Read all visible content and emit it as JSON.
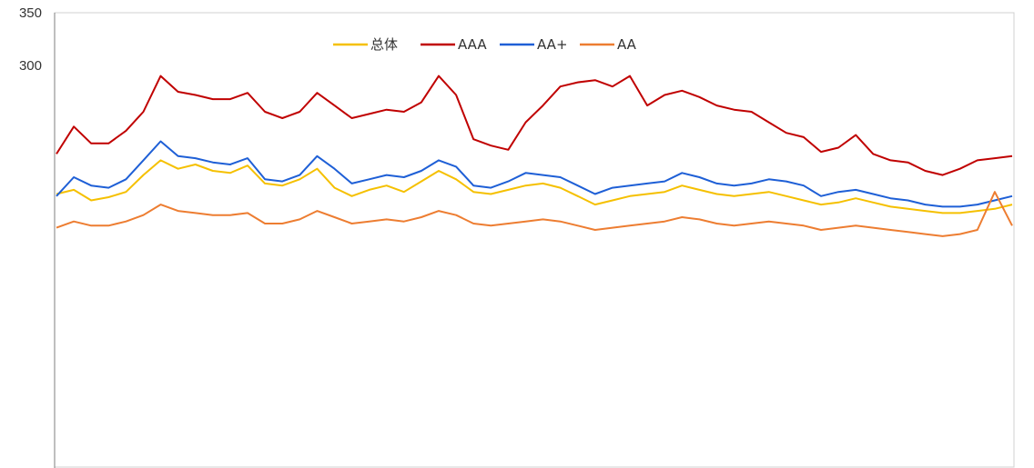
{
  "chart_data": {
    "type": "line",
    "title": "",
    "xlabel": "",
    "ylabel": "",
    "ylim": [
      0,
      350
    ],
    "yticks": [
      300,
      350
    ],
    "grid": false,
    "legend_placement": "top-center",
    "series": [
      {
        "name": "总体",
        "color": "#f5c000",
        "values": [
          178,
          182,
          172,
          175,
          180,
          196,
          210,
          202,
          206,
          200,
          198,
          205,
          188,
          186,
          192,
          202,
          184,
          176,
          182,
          186,
          180,
          190,
          200,
          192,
          180,
          178,
          182,
          186,
          188,
          184,
          176,
          168,
          172,
          176,
          178,
          180,
          186,
          182,
          178,
          176,
          178,
          180,
          176,
          172,
          168,
          170,
          174,
          170,
          166,
          164,
          162,
          160,
          160,
          162,
          164,
          168
        ]
      },
      {
        "name": "AAA",
        "color": "#c00000",
        "values": [
          216,
          242,
          226,
          226,
          238,
          256,
          290,
          275,
          272,
          268,
          268,
          274,
          256,
          250,
          256,
          274,
          262,
          250,
          254,
          258,
          256,
          265,
          290,
          272,
          230,
          224,
          220,
          246,
          262,
          280,
          284,
          286,
          280,
          290,
          262,
          272,
          276,
          270,
          262,
          258,
          256,
          246,
          236,
          232,
          218,
          222,
          234,
          216,
          210,
          208,
          200,
          196,
          202,
          210,
          212,
          214
        ]
      },
      {
        "name": "AA+",
        "color": "#1e5fd6",
        "values": [
          176,
          194,
          186,
          184,
          192,
          210,
          228,
          214,
          212,
          208,
          206,
          212,
          192,
          190,
          196,
          214,
          202,
          188,
          192,
          196,
          194,
          200,
          210,
          204,
          186,
          184,
          190,
          198,
          196,
          194,
          186,
          178,
          184,
          186,
          188,
          190,
          198,
          194,
          188,
          186,
          188,
          192,
          190,
          186,
          176,
          180,
          182,
          178,
          174,
          172,
          168,
          166,
          166,
          168,
          172,
          176
        ]
      },
      {
        "name": "AA",
        "color": "#ed7d31",
        "values": [
          146,
          152,
          148,
          148,
          152,
          158,
          168,
          162,
          160,
          158,
          158,
          160,
          150,
          150,
          154,
          162,
          156,
          150,
          152,
          154,
          152,
          156,
          162,
          158,
          150,
          148,
          150,
          152,
          154,
          152,
          148,
          144,
          146,
          148,
          150,
          152,
          156,
          154,
          150,
          148,
          150,
          152,
          150,
          148,
          144,
          146,
          148,
          146,
          144,
          142,
          140,
          138,
          140,
          144,
          180,
          148
        ]
      }
    ]
  }
}
